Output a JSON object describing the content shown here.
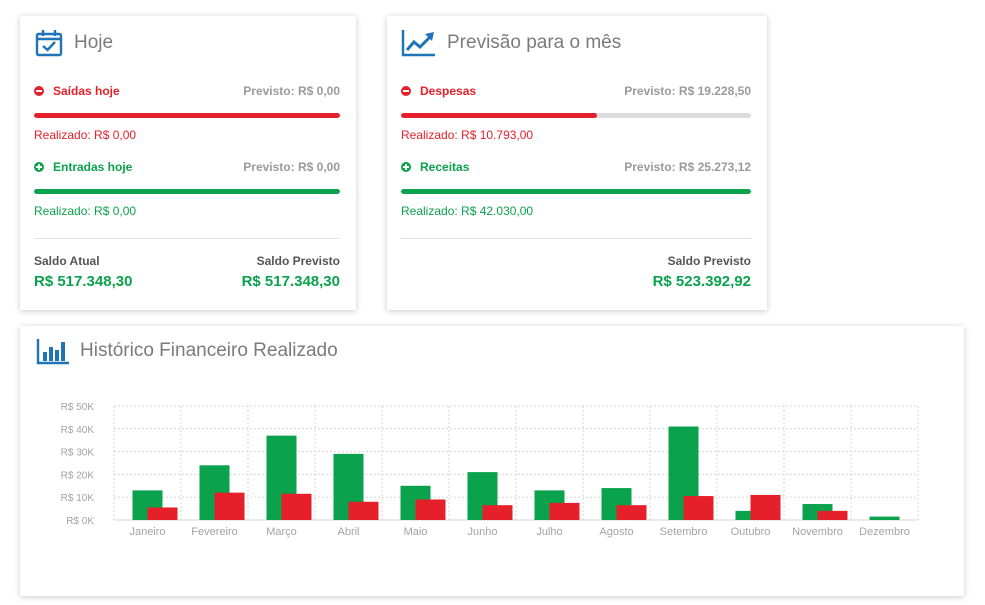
{
  "hoje": {
    "title": "Hoje",
    "saidas": {
      "label": "Saídas hoje",
      "previsto": "Previsto: R$ 0,00",
      "realizado": "Realizado: R$ 0,00",
      "progress": 1.0
    },
    "entradas": {
      "label": "Entradas hoje",
      "previsto": "Previsto: R$ 0,00",
      "realizado": "Realizado: R$ 0,00",
      "progress": 1.0
    },
    "saldo_atual_label": "Saldo Atual",
    "saldo_atual_value": "R$ 517.348,30",
    "saldo_previsto_label": "Saldo Previsto",
    "saldo_previsto_value": "R$ 517.348,30"
  },
  "previsao": {
    "title": "Previsão para o mês",
    "despesas": {
      "label": "Despesas",
      "previsto": "Previsto: R$ 19.228,50",
      "realizado": "Realizado: R$ 10.793,00",
      "progress": 0.5613
    },
    "receitas": {
      "label": "Receitas",
      "previsto": "Previsto: R$ 25.273,12",
      "realizado": "Realizado: R$ 42.030,00",
      "progress": 1.0
    },
    "saldo_previsto_label": "Saldo Previsto",
    "saldo_previsto_value": "R$ 523.392,92"
  },
  "historico": {
    "title": "Histórico Financeiro Realizado"
  },
  "colors": {
    "red": "#e5202a",
    "green": "#0aa24c",
    "accent": "#1f73b7"
  },
  "icons": {
    "hoje": "calendar-check-icon",
    "previsao": "trend-up-chart-icon",
    "historico": "bar-chart-icon",
    "saida": "minus-circle-icon",
    "entrada": "plus-circle-icon"
  },
  "chart_data": {
    "type": "bar",
    "categories": [
      "Janeiro",
      "Fevereiro",
      "Março",
      "Abril",
      "Maio",
      "Junho",
      "Julho",
      "Agosto",
      "Setembro",
      "Outubro",
      "Novembro",
      "Dezembro"
    ],
    "series": [
      {
        "color": "#0aa24c",
        "values": [
          13000,
          24000,
          37000,
          29000,
          15000,
          21000,
          13000,
          14000,
          41000,
          4000,
          7000,
          1500
        ]
      },
      {
        "color": "#e5202a",
        "values": [
          5500,
          12000,
          11500,
          8000,
          9000,
          6500,
          7500,
          6500,
          10500,
          11000,
          4000,
          0
        ]
      }
    ],
    "yticks": [
      "R$ 0K",
      "R$ 10K",
      "R$ 20K",
      "R$ 30K",
      "R$ 40K",
      "R$ 50K"
    ],
    "ylim": [
      0,
      50000
    ],
    "grid": true
  }
}
